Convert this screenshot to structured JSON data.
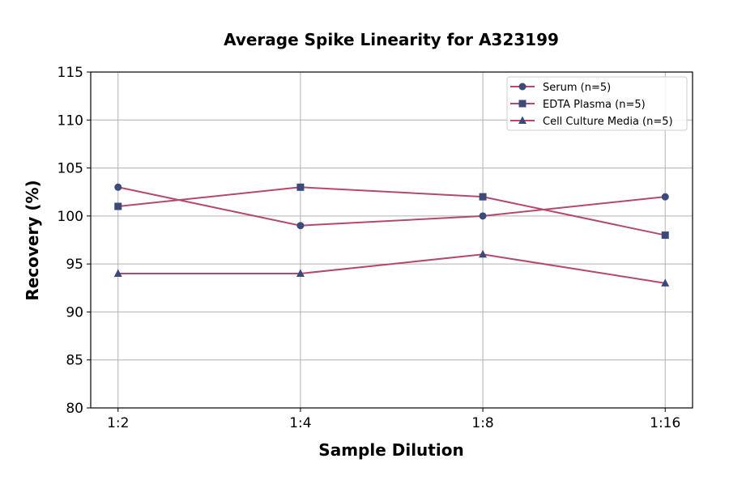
{
  "chart_data": {
    "type": "line",
    "title": "Average Spike Linearity for A323199",
    "xlabel": "Sample Dilution",
    "ylabel": "Recovery (%)",
    "categories": [
      "1:2",
      "1:4",
      "1:8",
      "1:16"
    ],
    "ylim": [
      80,
      115
    ],
    "yticks": [
      80,
      85,
      90,
      95,
      100,
      105,
      110,
      115
    ],
    "grid": true,
    "legend_position": "top-right",
    "line_color": "#b5486f",
    "marker_color": "#3b4a78",
    "series": [
      {
        "name": "Serum (n=5)",
        "marker": "circle",
        "values": [
          103,
          99,
          100,
          102
        ]
      },
      {
        "name": "EDTA Plasma (n=5)",
        "marker": "square",
        "values": [
          101,
          103,
          102,
          98
        ]
      },
      {
        "name": "Cell Culture Media (n=5)",
        "marker": "triangle",
        "values": [
          94,
          94,
          96,
          93
        ]
      }
    ]
  }
}
